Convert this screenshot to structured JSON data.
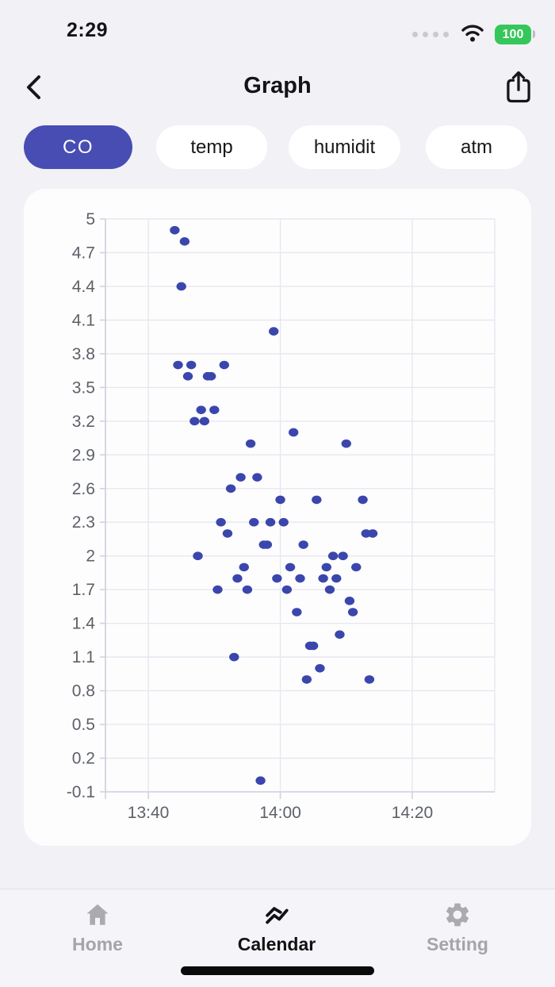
{
  "status_bar": {
    "time": "2:29",
    "battery_level": "100"
  },
  "header": {
    "title": "Graph"
  },
  "filters": {
    "options": [
      {
        "label": "CO",
        "active": true
      },
      {
        "label": "temp",
        "active": false
      },
      {
        "label": "humidit",
        "active": false
      },
      {
        "label": "atm",
        "active": false
      }
    ]
  },
  "chart_data": {
    "type": "scatter",
    "series_name": "CO",
    "grid": true,
    "point_color": "#3b46ad",
    "x_axis": {
      "range": [
        "13:33:30",
        "14:32:30"
      ],
      "ticks": [
        {
          "time": "13:40",
          "label": "13:40"
        },
        {
          "time": "14:00",
          "label": "14:00"
        },
        {
          "time": "14:20",
          "label": "14:20"
        }
      ]
    },
    "y_axis": {
      "min": -0.1,
      "max": 5,
      "ticks": [
        5,
        4.7,
        4.4,
        4.1,
        3.8,
        3.5,
        3.2,
        2.9,
        2.6,
        2.3,
        2,
        1.7,
        1.4,
        1.1,
        0.8,
        0.5,
        0.2,
        -0.1
      ],
      "tick_labels": [
        "5",
        "4.7",
        "4.4",
        "4.1",
        "3.8",
        "3.5",
        "3.2",
        "2.9",
        "2.6",
        "2.3",
        "2",
        "1.7",
        "1.4",
        "1.1",
        "0.8",
        "0.5",
        "0.2",
        "-0.1"
      ]
    },
    "points": [
      {
        "t": "13:44",
        "v": 4.9
      },
      {
        "t": "13:45:30",
        "v": 4.8
      },
      {
        "t": "13:45",
        "v": 4.4
      },
      {
        "t": "13:59",
        "v": 4.0
      },
      {
        "t": "13:44:30",
        "v": 3.7
      },
      {
        "t": "13:46:30",
        "v": 3.7
      },
      {
        "t": "13:51:30",
        "v": 3.7
      },
      {
        "t": "13:46",
        "v": 3.6
      },
      {
        "t": "13:49",
        "v": 3.6
      },
      {
        "t": "13:49:30",
        "v": 3.6
      },
      {
        "t": "13:48",
        "v": 3.3
      },
      {
        "t": "13:50",
        "v": 3.3
      },
      {
        "t": "13:47",
        "v": 3.2
      },
      {
        "t": "13:48:30",
        "v": 3.2
      },
      {
        "t": "14:02",
        "v": 3.1
      },
      {
        "t": "13:55:30",
        "v": 3.0
      },
      {
        "t": "14:10",
        "v": 3.0
      },
      {
        "t": "13:54",
        "v": 2.7
      },
      {
        "t": "13:56:30",
        "v": 2.7
      },
      {
        "t": "13:52:30",
        "v": 2.6
      },
      {
        "t": "14:00",
        "v": 2.5
      },
      {
        "t": "14:05:30",
        "v": 2.5
      },
      {
        "t": "14:12:30",
        "v": 2.5
      },
      {
        "t": "13:51",
        "v": 2.3
      },
      {
        "t": "13:56",
        "v": 2.3
      },
      {
        "t": "13:58:30",
        "v": 2.3
      },
      {
        "t": "14:00:30",
        "v": 2.3
      },
      {
        "t": "13:52",
        "v": 2.2
      },
      {
        "t": "14:13",
        "v": 2.2
      },
      {
        "t": "14:14",
        "v": 2.2
      },
      {
        "t": "13:57:30",
        "v": 2.1
      },
      {
        "t": "13:58",
        "v": 2.1
      },
      {
        "t": "14:03:30",
        "v": 2.1
      },
      {
        "t": "13:47:30",
        "v": 2.0
      },
      {
        "t": "14:08",
        "v": 2.0
      },
      {
        "t": "14:09:30",
        "v": 2.0
      },
      {
        "t": "13:54:30",
        "v": 1.9
      },
      {
        "t": "14:01:30",
        "v": 1.9
      },
      {
        "t": "14:07",
        "v": 1.9
      },
      {
        "t": "14:11:30",
        "v": 1.9
      },
      {
        "t": "13:53:30",
        "v": 1.8
      },
      {
        "t": "13:59:30",
        "v": 1.8
      },
      {
        "t": "14:03",
        "v": 1.8
      },
      {
        "t": "14:06:30",
        "v": 1.8
      },
      {
        "t": "14:08:30",
        "v": 1.8
      },
      {
        "t": "13:50:30",
        "v": 1.7
      },
      {
        "t": "13:55",
        "v": 1.7
      },
      {
        "t": "14:01",
        "v": 1.7
      },
      {
        "t": "14:07:30",
        "v": 1.7
      },
      {
        "t": "14:10:30",
        "v": 1.6
      },
      {
        "t": "14:02:30",
        "v": 1.5
      },
      {
        "t": "14:11",
        "v": 1.5
      },
      {
        "t": "14:09",
        "v": 1.3
      },
      {
        "t": "14:04:30",
        "v": 1.2
      },
      {
        "t": "14:05",
        "v": 1.2
      },
      {
        "t": "13:53",
        "v": 1.1
      },
      {
        "t": "14:06",
        "v": 1.0
      },
      {
        "t": "14:04",
        "v": 0.9
      },
      {
        "t": "14:13:30",
        "v": 0.9
      },
      {
        "t": "13:57",
        "v": 0.0
      }
    ]
  },
  "tab_bar": {
    "items": [
      {
        "label": "Home",
        "active": false
      },
      {
        "label": "Calendar",
        "active": true
      },
      {
        "label": "Setting",
        "active": false
      }
    ]
  },
  "colors": {
    "accent": "#474db3",
    "point": "#3b46ad",
    "battery": "#35c75a",
    "grid": "#e9e6ef",
    "axis": "#d5d1dc",
    "tick_text": "#5d6168"
  }
}
